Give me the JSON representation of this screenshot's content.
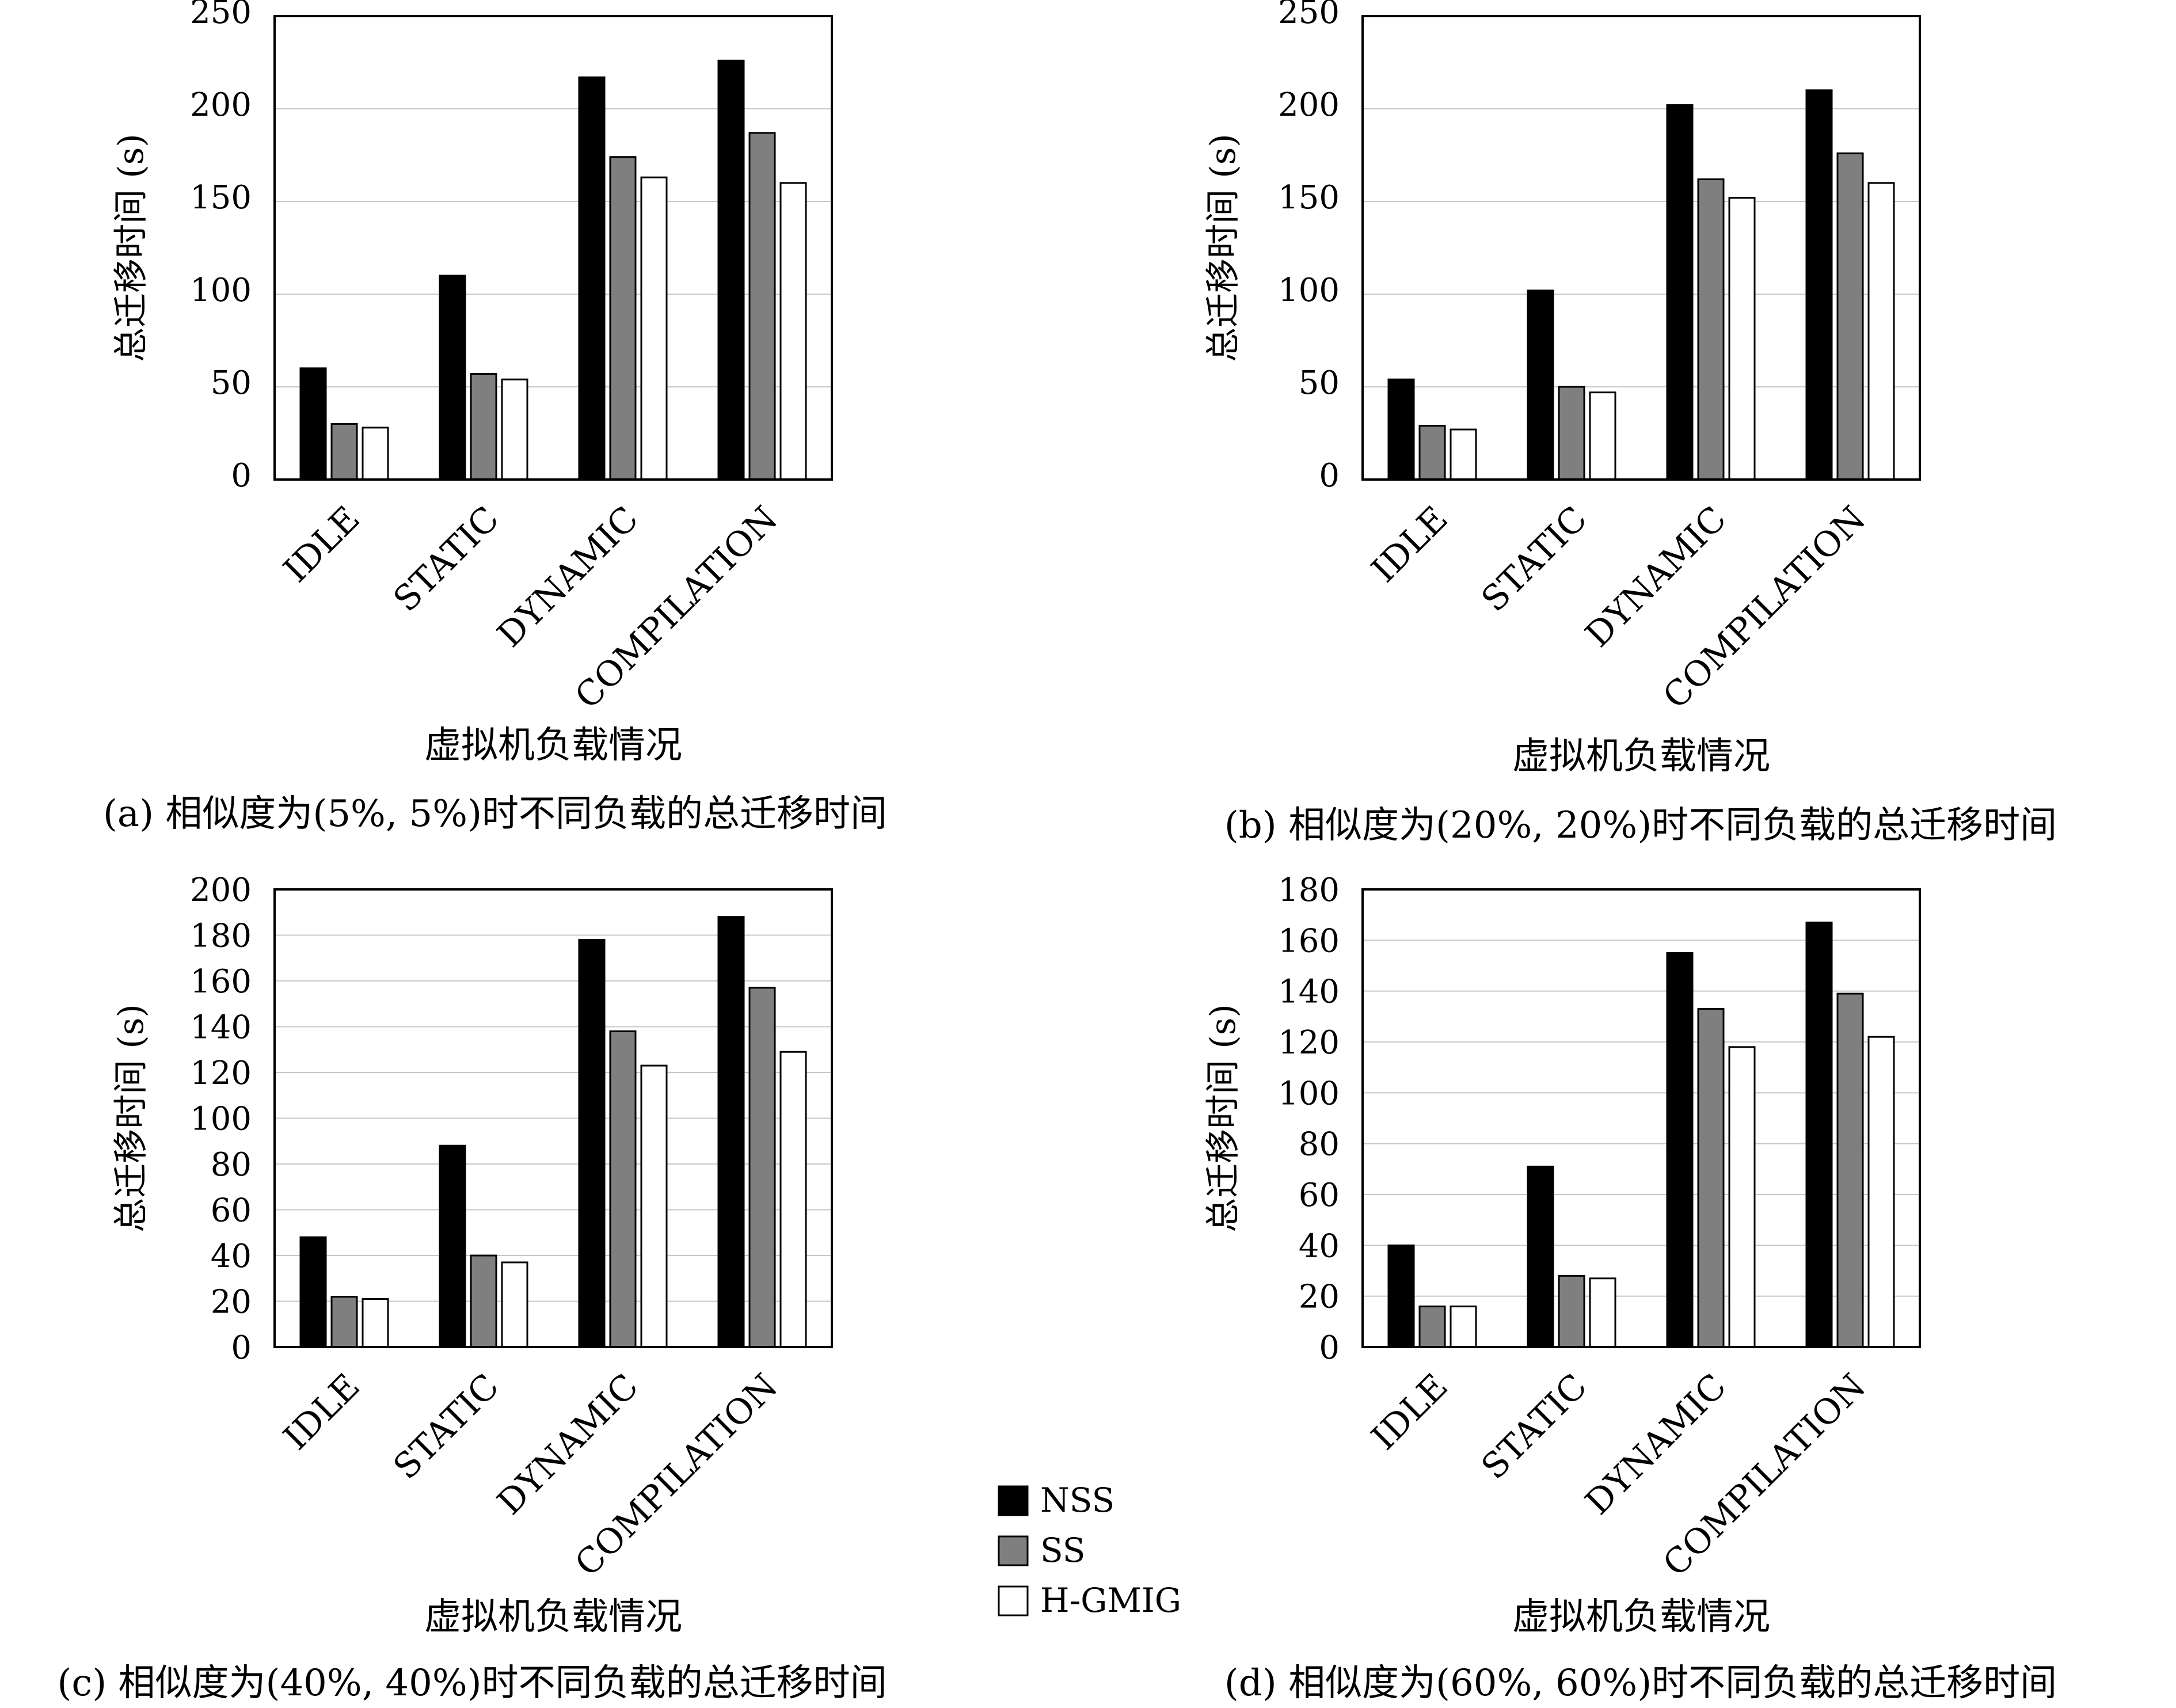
{
  "legend": [
    {
      "name": "NSS",
      "color": "#000000"
    },
    {
      "name": "SS",
      "color": "#7f7f7f"
    },
    {
      "name": "H-GMIG",
      "color": "#ffffff"
    }
  ],
  "chart_data": [
    {
      "type": "bar",
      "caption": "(a) 相似度为(5%, 5%)时不同负载的总迁移时间",
      "xlabel": "虚拟机负载情况",
      "ylabel": "总迁移时间 (s)",
      "categories": [
        "IDLE",
        "STATIC",
        "DYNAMIC",
        "COMPILATION"
      ],
      "ylim": [
        0,
        250
      ],
      "yticks": [
        0,
        50,
        100,
        150,
        200,
        250
      ],
      "grid": true,
      "series": [
        {
          "name": "NSS",
          "values": [
            60,
            110,
            217,
            226
          ]
        },
        {
          "name": "SS",
          "values": [
            30,
            57,
            174,
            187
          ]
        },
        {
          "name": "H-GMIG",
          "values": [
            28,
            54,
            163,
            160
          ]
        }
      ]
    },
    {
      "type": "bar",
      "caption": "(b) 相似度为(20%, 20%)时不同负载的总迁移时间",
      "xlabel": "虚拟机负载情况",
      "ylabel": "总迁移时间 (s)",
      "categories": [
        "IDLE",
        "STATIC",
        "DYNAMIC",
        "COMPILATION"
      ],
      "ylim": [
        0,
        250
      ],
      "yticks": [
        0,
        50,
        100,
        150,
        200,
        250
      ],
      "grid": true,
      "series": [
        {
          "name": "NSS",
          "values": [
            54,
            102,
            202,
            210
          ]
        },
        {
          "name": "SS",
          "values": [
            29,
            50,
            162,
            176
          ]
        },
        {
          "name": "H-GMIG",
          "values": [
            27,
            47,
            152,
            160
          ]
        }
      ]
    },
    {
      "type": "bar",
      "caption": "(c) 相似度为(40%, 40%)时不同负载的总迁移时间",
      "xlabel": "虚拟机负载情况",
      "ylabel": "总迁移时间 (s)",
      "categories": [
        "IDLE",
        "STATIC",
        "DYNAMIC",
        "COMPILATION"
      ],
      "ylim": [
        0,
        200
      ],
      "yticks": [
        0,
        20,
        40,
        60,
        80,
        100,
        120,
        140,
        160,
        180,
        200
      ],
      "grid": true,
      "series": [
        {
          "name": "NSS",
          "values": [
            48,
            88,
            178,
            188
          ]
        },
        {
          "name": "SS",
          "values": [
            22,
            40,
            138,
            157
          ]
        },
        {
          "name": "H-GMIG",
          "values": [
            21,
            37,
            123,
            129
          ]
        }
      ]
    },
    {
      "type": "bar",
      "caption": "(d) 相似度为(60%, 60%)时不同负载的总迁移时间",
      "xlabel": "虚拟机负载情况",
      "ylabel": "总迁移时间 (s)",
      "categories": [
        "IDLE",
        "STATIC",
        "DYNAMIC",
        "COMPILATION"
      ],
      "ylim": [
        0,
        180
      ],
      "yticks": [
        0,
        20,
        40,
        60,
        80,
        100,
        120,
        140,
        160,
        180
      ],
      "grid": true,
      "series": [
        {
          "name": "NSS",
          "values": [
            40,
            71,
            155,
            167
          ]
        },
        {
          "name": "SS",
          "values": [
            16,
            28,
            133,
            139
          ]
        },
        {
          "name": "H-GMIG",
          "values": [
            16,
            27,
            118,
            122
          ]
        }
      ]
    }
  ]
}
